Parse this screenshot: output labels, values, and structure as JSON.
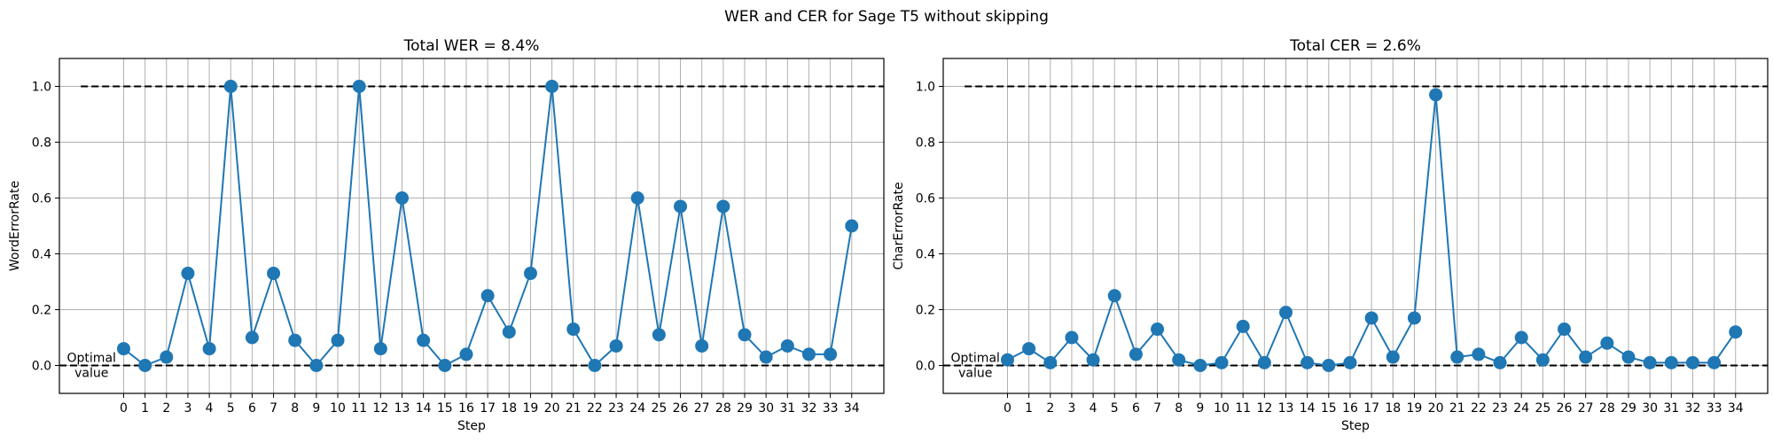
{
  "figure": {
    "suptitle": "WER and CER for Sage T5 without skipping"
  },
  "optimal_label": [
    "Optimal",
    "value"
  ],
  "colors": {
    "series": "#1f77b4",
    "grid": "#b0b0b0",
    "reference": "#000000",
    "axes": "#000000"
  },
  "chart_data": [
    {
      "type": "line",
      "title": "Total WER = 8.4%",
      "xlabel": "Step",
      "ylabel": "WordErrorRate",
      "xlim": [
        -3,
        35.5
      ],
      "ylim": [
        -0.1,
        1.1
      ],
      "grid": true,
      "marker": "circle",
      "x": [
        0,
        1,
        2,
        3,
        4,
        5,
        6,
        7,
        8,
        9,
        10,
        11,
        12,
        13,
        14,
        15,
        16,
        17,
        18,
        19,
        20,
        21,
        22,
        23,
        24,
        25,
        26,
        27,
        28,
        29,
        30,
        31,
        32,
        33,
        34
      ],
      "x_ticks": [
        "0",
        "1",
        "2",
        "3",
        "4",
        "5",
        "6",
        "7",
        "8",
        "9",
        "10",
        "11",
        "12",
        "13",
        "14",
        "15",
        "16",
        "17",
        "18",
        "19",
        "20",
        "21",
        "22",
        "23",
        "24",
        "25",
        "26",
        "27",
        "28",
        "29",
        "30",
        "31",
        "32",
        "33",
        "34"
      ],
      "y_ticks": [
        "0.0",
        "0.2",
        "0.4",
        "0.6",
        "0.8",
        "1.0"
      ],
      "y": [
        0.06,
        0.0,
        0.03,
        0.33,
        0.06,
        1.0,
        0.1,
        0.33,
        0.09,
        0.0,
        0.09,
        1.0,
        0.06,
        0.6,
        0.09,
        0.0,
        0.04,
        0.25,
        0.12,
        0.33,
        1.0,
        0.13,
        0.0,
        0.07,
        0.6,
        0.11,
        0.57,
        0.07,
        0.57,
        0.11,
        0.03,
        0.07,
        0.04,
        0.04,
        0.5
      ],
      "reference_lines": [
        {
          "y": 1.0,
          "x_range": [
            -2,
            35.5
          ],
          "style": "dashed"
        },
        {
          "y": 0.0,
          "x_range": [
            -3,
            35.5
          ],
          "style": "dashed"
        }
      ]
    },
    {
      "type": "line",
      "title": "Total CER = 2.6%",
      "xlabel": "Step",
      "ylabel": "CharErrorRate",
      "xlim": [
        -3,
        35.5
      ],
      "ylim": [
        -0.1,
        1.1
      ],
      "grid": true,
      "marker": "circle",
      "x": [
        0,
        1,
        2,
        3,
        4,
        5,
        6,
        7,
        8,
        9,
        10,
        11,
        12,
        13,
        14,
        15,
        16,
        17,
        18,
        19,
        20,
        21,
        22,
        23,
        24,
        25,
        26,
        27,
        28,
        29,
        30,
        31,
        32,
        33,
        34
      ],
      "x_ticks": [
        "0",
        "1",
        "2",
        "3",
        "4",
        "5",
        "6",
        "7",
        "8",
        "9",
        "10",
        "11",
        "12",
        "13",
        "14",
        "15",
        "16",
        "17",
        "18",
        "19",
        "20",
        "21",
        "22",
        "23",
        "24",
        "25",
        "26",
        "27",
        "28",
        "29",
        "30",
        "31",
        "32",
        "33",
        "34"
      ],
      "y_ticks": [
        "0.0",
        "0.2",
        "0.4",
        "0.6",
        "0.8",
        "1.0"
      ],
      "y": [
        0.02,
        0.06,
        0.01,
        0.1,
        0.02,
        0.25,
        0.04,
        0.13,
        0.02,
        0.0,
        0.01,
        0.14,
        0.01,
        0.19,
        0.01,
        0.0,
        0.01,
        0.17,
        0.03,
        0.17,
        0.97,
        0.03,
        0.04,
        0.01,
        0.1,
        0.02,
        0.13,
        0.03,
        0.08,
        0.03,
        0.01,
        0.01,
        0.01,
        0.01,
        0.12
      ],
      "reference_lines": [
        {
          "y": 1.0,
          "x_range": [
            -2,
            35.5
          ],
          "style": "dashed"
        },
        {
          "y": 0.0,
          "x_range": [
            -3,
            35.5
          ],
          "style": "dashed"
        }
      ]
    }
  ]
}
